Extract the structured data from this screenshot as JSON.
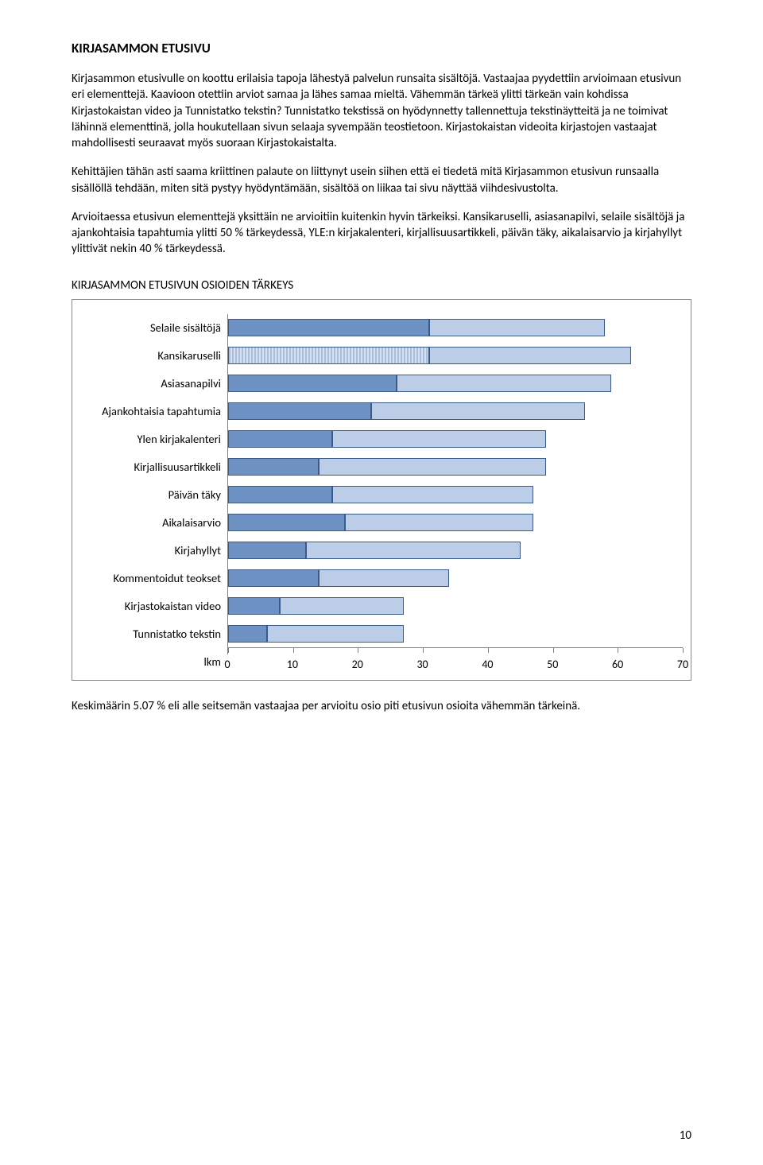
{
  "title": "KIRJASAMMON ETUSIVU",
  "paragraphs": {
    "p1": "Kirjasammon etusivulle on koottu erilaisia tapoja lähestyä palvelun runsaita sisältöjä. Vastaajaa pyydettiin arvioimaan etusivun eri elementtejä. Kaavioon otettiin arviot samaa ja lähes samaa mieltä. Vähemmän tärkeä ylitti tärkeän vain kohdissa Kirjastokaistan video ja Tunnistatko tekstin? Tunnistatko tekstissä on hyödynnetty tallennettuja tekstinäytteitä ja ne toimivat lähinnä elementtinä, jolla houkutellaan sivun selaaja syvempään teostietoon. Kirjastokaistan videoita kirjastojen vastaajat mahdollisesti seuraavat myös suoraan Kirjastokaistalta.",
    "p2": "Kehittäjien tähän asti saama kriittinen palaute on liittynyt usein siihen että ei tiedetä mitä Kirjasammon etusivun runsaalla sisällöllä tehdään, miten sitä pystyy hyödyntämään, sisältöä on liikaa tai sivu näyttää viihdesivustolta.",
    "p3": "Arvioitaessa etusivun elementtejä yksittäin ne arvioitiin kuitenkin hyvin tärkeiksi. Kansikaruselli, asiasanapilvi, selaile sisältöjä ja ajankohtaisia tapahtumia ylitti 50 % tärkeydessä, YLE:n kirjakalenteri, kirjallisuusartikkeli, päivän täky, aikalaisarvio ja kirjahyllyt ylittivät nekin 40 % tärkeydessä."
  },
  "chart": {
    "title": "KIRJASAMMON ETUSIVUN OSIOIDEN TÄRKEYS",
    "type": "stacked-horizontal-bar",
    "x_axis_label": "lkm",
    "x_min": 0,
    "x_max": 70,
    "x_tick_step": 10,
    "x_ticks": [
      0,
      10,
      20,
      30,
      40,
      50,
      60,
      70
    ],
    "colors": {
      "seg1": "#6f92c4",
      "seg2": "#bccde8",
      "border": "#3b5a88",
      "axis": "#7f7f7f",
      "text": "#000000",
      "pattern_stripe": "#a9bddc",
      "pattern_bg": "#d6e0f0"
    },
    "label_fontsize": 14.5,
    "tick_fontsize": 14,
    "categories": [
      {
        "label": "Selaile sisältöjä",
        "seg1": 31,
        "seg2": 27,
        "pattern": false
      },
      {
        "label": "Kansikaruselli",
        "seg1": 31,
        "seg2": 31,
        "pattern": true
      },
      {
        "label": "Asiasanapilvi",
        "seg1": 26,
        "seg2": 33,
        "pattern": false
      },
      {
        "label": "Ajankohtaisia tapahtumia",
        "seg1": 22,
        "seg2": 33,
        "pattern": false
      },
      {
        "label": "Ylen kirjakalenteri",
        "seg1": 16,
        "seg2": 33,
        "pattern": false
      },
      {
        "label": "Kirjallisuusartikkeli",
        "seg1": 14,
        "seg2": 35,
        "pattern": false
      },
      {
        "label": "Päivän täky",
        "seg1": 16,
        "seg2": 31,
        "pattern": false
      },
      {
        "label": "Aikalaisarvio",
        "seg1": 18,
        "seg2": 29,
        "pattern": false
      },
      {
        "label": "Kirjahyllyt",
        "seg1": 12,
        "seg2": 33,
        "pattern": false
      },
      {
        "label": "Kommentoidut teokset",
        "seg1": 14,
        "seg2": 20,
        "pattern": false
      },
      {
        "label": "Kirjastokaistan video",
        "seg1": 8,
        "seg2": 19,
        "pattern": false
      },
      {
        "label": "Tunnistatko tekstin",
        "seg1": 6,
        "seg2": 21,
        "pattern": false
      }
    ]
  },
  "footer_text": "Keskimäärin 5.07 % eli alle seitsemän vastaajaa per arvioitu osio piti etusivun osioita vähemmän tärkeinä.",
  "page_number": "10"
}
